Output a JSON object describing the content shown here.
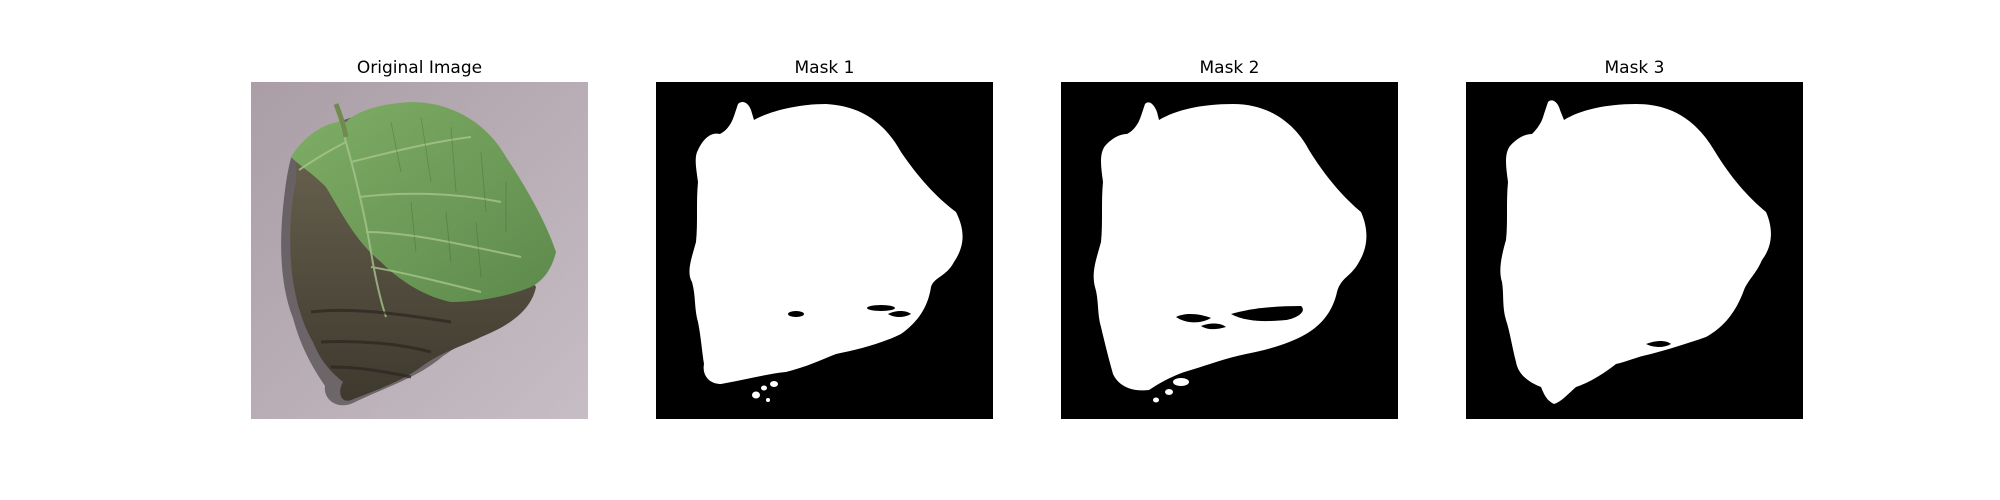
{
  "figure": {
    "panels": [
      {
        "id": "original",
        "title": "Original Image"
      },
      {
        "id": "mask1",
        "title": "Mask 1"
      },
      {
        "id": "mask2",
        "title": "Mask 2"
      },
      {
        "id": "mask3",
        "title": "Mask 3"
      }
    ]
  },
  "colors": {
    "background": "#ffffff",
    "photo_bg": "#b9aeb6",
    "leaf_green": "#6e9a58",
    "leaf_dark": "#4a4435",
    "mask_fg": "#ffffff",
    "mask_bg": "#000000"
  }
}
